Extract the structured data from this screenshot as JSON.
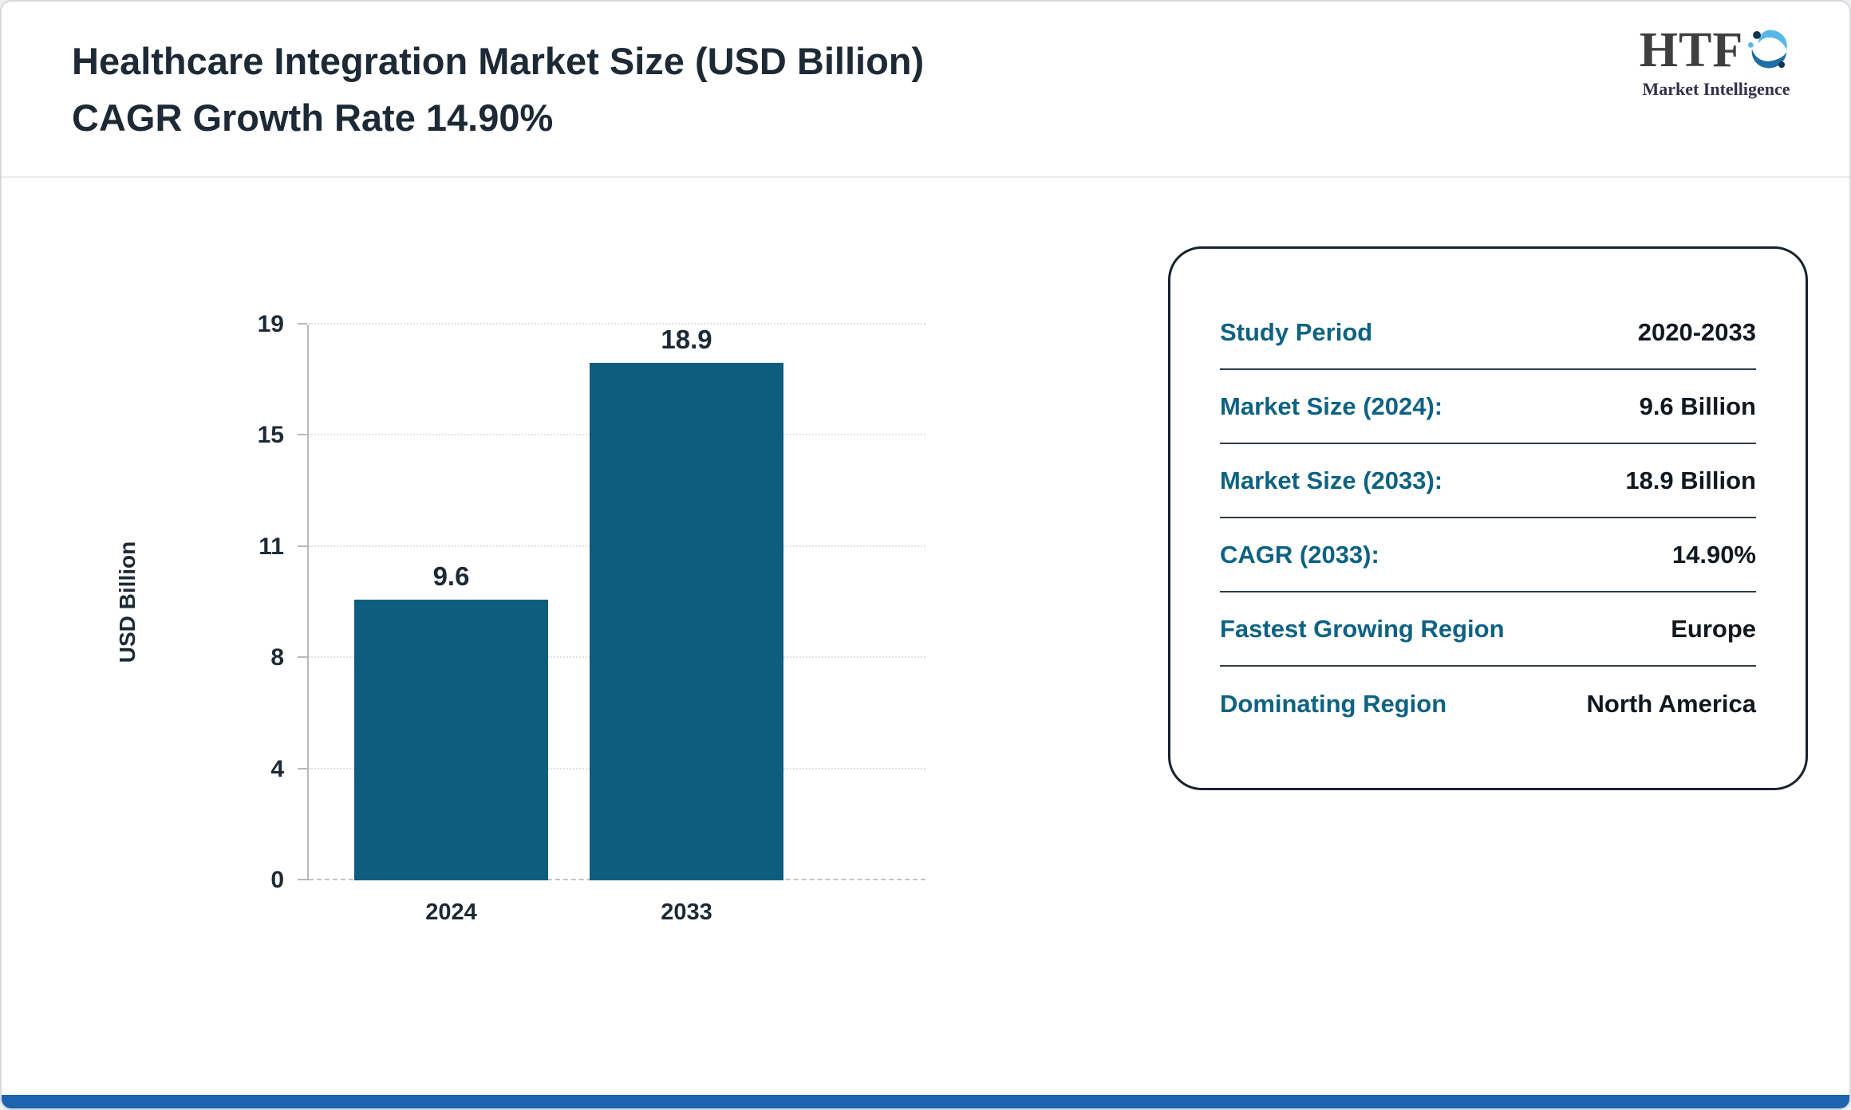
{
  "header": {
    "title_line1": "Healthcare Integration Market Size (USD Billion)",
    "title_line2": "CAGR Growth Rate 14.90%"
  },
  "logo": {
    "text": "HTF",
    "subtext": "Market Intelligence"
  },
  "chart_data": {
    "type": "bar",
    "categories": [
      "2024",
      "2033"
    ],
    "values": [
      9.6,
      18.9
    ],
    "bar_labels": [
      "9.6",
      "18.9"
    ],
    "title": "Healthcare Integration Market Size (USD Billion)",
    "xlabel": "",
    "ylabel": "USD Billion",
    "ylim": [
      0,
      19
    ],
    "yticks": [
      0,
      4,
      8,
      11,
      15,
      19
    ],
    "grid": "horizontal-dotted",
    "legend": "none",
    "bar_color": "#0e5d7e"
  },
  "info_card": {
    "rows": [
      {
        "label": "Study Period",
        "value": "2020-2033"
      },
      {
        "label": "Market Size (2024):",
        "value": "9.6 Billion"
      },
      {
        "label": "Market Size (2033):",
        "value": "18.9 Billion"
      },
      {
        "label": "CAGR (2033):",
        "value": "14.90%"
      },
      {
        "label": "Fastest Growing Region",
        "value": "Europe"
      },
      {
        "label": "Dominating Region",
        "value": "North America"
      }
    ]
  },
  "colors": {
    "bar_teal": "#0e5d7e",
    "label_teal": "#0e6283",
    "title_text": "#1d2a36",
    "bottom_bar_blue": "#1c64ad"
  }
}
